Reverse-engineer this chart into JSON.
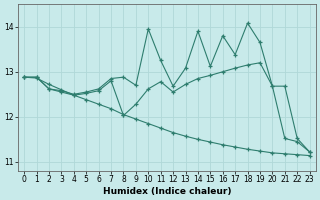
{
  "xlabel": "Humidex (Indice chaleur)",
  "bg_color": "#c8eaea",
  "line_color": "#2e7d6e",
  "grid_color": "#b0d8d8",
  "xlim": [
    -0.5,
    23.5
  ],
  "ylim": [
    10.8,
    14.5
  ],
  "yticks": [
    11,
    12,
    13,
    14
  ],
  "xticks": [
    0,
    1,
    2,
    3,
    4,
    5,
    6,
    7,
    8,
    9,
    10,
    11,
    12,
    13,
    14,
    15,
    16,
    17,
    18,
    19,
    20,
    21,
    22,
    23
  ],
  "series": [
    {
      "x": [
        0,
        1,
        2,
        3,
        4,
        5,
        6,
        7,
        8,
        9,
        10,
        11,
        12,
        13,
        14,
        15,
        16,
        17,
        18,
        19,
        20,
        21,
        22,
        23
      ],
      "y": [
        12.88,
        12.88,
        12.62,
        12.58,
        12.5,
        12.55,
        12.62,
        12.85,
        12.88,
        12.7,
        13.95,
        13.25,
        12.68,
        13.08,
        13.9,
        13.12,
        13.8,
        13.38,
        14.08,
        13.65,
        12.68,
        11.52,
        11.45,
        11.22
      ]
    },
    {
      "x": [
        0,
        1,
        2,
        3,
        4,
        5,
        6,
        7,
        8,
        9,
        10,
        11,
        12,
        13,
        14,
        15,
        16,
        17,
        18,
        19,
        20,
        21,
        22,
        23
      ],
      "y": [
        12.88,
        12.88,
        12.62,
        12.55,
        12.48,
        12.52,
        12.58,
        12.8,
        12.03,
        12.28,
        12.62,
        12.78,
        12.55,
        12.72,
        12.85,
        12.92,
        13.0,
        13.08,
        13.15,
        13.2,
        12.68,
        12.68,
        11.52,
        11.22
      ]
    },
    {
      "x": [
        0,
        1,
        2,
        3,
        4,
        5,
        6,
        7,
        8,
        9,
        10,
        11,
        12,
        13,
        14,
        15,
        16,
        17,
        18,
        19,
        20,
        21,
        22,
        23
      ],
      "y": [
        12.88,
        12.86,
        12.72,
        12.6,
        12.48,
        12.38,
        12.28,
        12.18,
        12.05,
        11.95,
        11.85,
        11.75,
        11.65,
        11.57,
        11.5,
        11.44,
        11.38,
        11.33,
        11.28,
        11.24,
        11.2,
        11.18,
        11.16,
        11.14
      ]
    }
  ]
}
